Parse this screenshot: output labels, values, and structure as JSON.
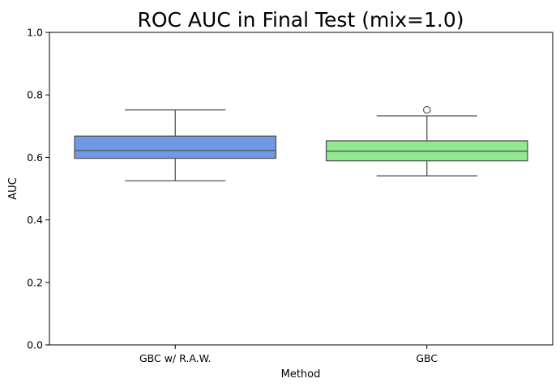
{
  "chart_data": {
    "type": "box",
    "title": "ROC AUC in Final Test (mix=1.0)",
    "xlabel": "Method",
    "ylabel": "AUC",
    "ylim": [
      0.0,
      1.0
    ],
    "yticks": [
      "0.0",
      "0.2",
      "0.4",
      "0.6",
      "0.8",
      "1.0"
    ],
    "grid": false,
    "categories": [
      "GBC w/ R.A.W.",
      "GBC"
    ],
    "boxes": [
      {
        "category": "GBC w/ R.A.W.",
        "whisker_low": 0.525,
        "q1": 0.597,
        "median": 0.622,
        "q3": 0.668,
        "whisker_high": 0.752,
        "outliers": [],
        "color": "#6f98e6"
      },
      {
        "category": "GBC",
        "whisker_low": 0.541,
        "q1": 0.589,
        "median": 0.62,
        "q3": 0.653,
        "whisker_high": 0.733,
        "outliers": [
          0.752
        ],
        "color": "#90e890"
      }
    ]
  }
}
